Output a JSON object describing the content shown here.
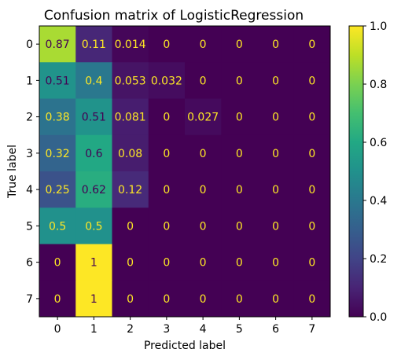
{
  "chart_data": {
    "type": "heatmap",
    "title": "Confusion matrix of LogisticRegression",
    "xlabel": "Predicted label",
    "ylabel": "True label",
    "x_categories": [
      "0",
      "1",
      "2",
      "3",
      "4",
      "5",
      "6",
      "7"
    ],
    "y_categories": [
      "0",
      "1",
      "2",
      "3",
      "4",
      "5",
      "6",
      "7"
    ],
    "values": [
      [
        0.87,
        0.11,
        0.014,
        0,
        0,
        0,
        0,
        0
      ],
      [
        0.51,
        0.4,
        0.053,
        0.032,
        0,
        0,
        0,
        0
      ],
      [
        0.38,
        0.51,
        0.081,
        0,
        0.027,
        0,
        0,
        0
      ],
      [
        0.32,
        0.6,
        0.08,
        0,
        0,
        0,
        0,
        0
      ],
      [
        0.25,
        0.62,
        0.12,
        0,
        0,
        0,
        0,
        0
      ],
      [
        0.5,
        0.5,
        0,
        0,
        0,
        0,
        0,
        0
      ],
      [
        0,
        1,
        0,
        0,
        0,
        0,
        0,
        0
      ],
      [
        0,
        1,
        0,
        0,
        0,
        0,
        0,
        0
      ]
    ],
    "value_labels": [
      [
        "0.87",
        "0.11",
        "0.014",
        "0",
        "0",
        "0",
        "0",
        "0"
      ],
      [
        "0.51",
        "0.4",
        "0.053",
        "0.032",
        "0",
        "0",
        "0",
        "0"
      ],
      [
        "0.38",
        "0.51",
        "0.081",
        "0",
        "0.027",
        "0",
        "0",
        "0"
      ],
      [
        "0.32",
        "0.6",
        "0.08",
        "0",
        "0",
        "0",
        "0",
        "0"
      ],
      [
        "0.25",
        "0.62",
        "0.12",
        "0",
        "0",
        "0",
        "0",
        "0"
      ],
      [
        "0.5",
        "0.5",
        "0",
        "0",
        "0",
        "0",
        "0",
        "0"
      ],
      [
        "0",
        "1",
        "0",
        "0",
        "0",
        "0",
        "0",
        "0"
      ],
      [
        "0",
        "1",
        "0",
        "0",
        "0",
        "0",
        "0",
        "0"
      ]
    ],
    "colorbar": {
      "range": [
        0,
        1
      ],
      "ticks": [
        0,
        0.2,
        0.4,
        0.6,
        0.8,
        1
      ],
      "tick_labels": [
        "0.0",
        "0.2",
        "0.4",
        "0.6",
        "0.8",
        "1.0"
      ]
    },
    "colormap": "viridis",
    "grid": false
  }
}
